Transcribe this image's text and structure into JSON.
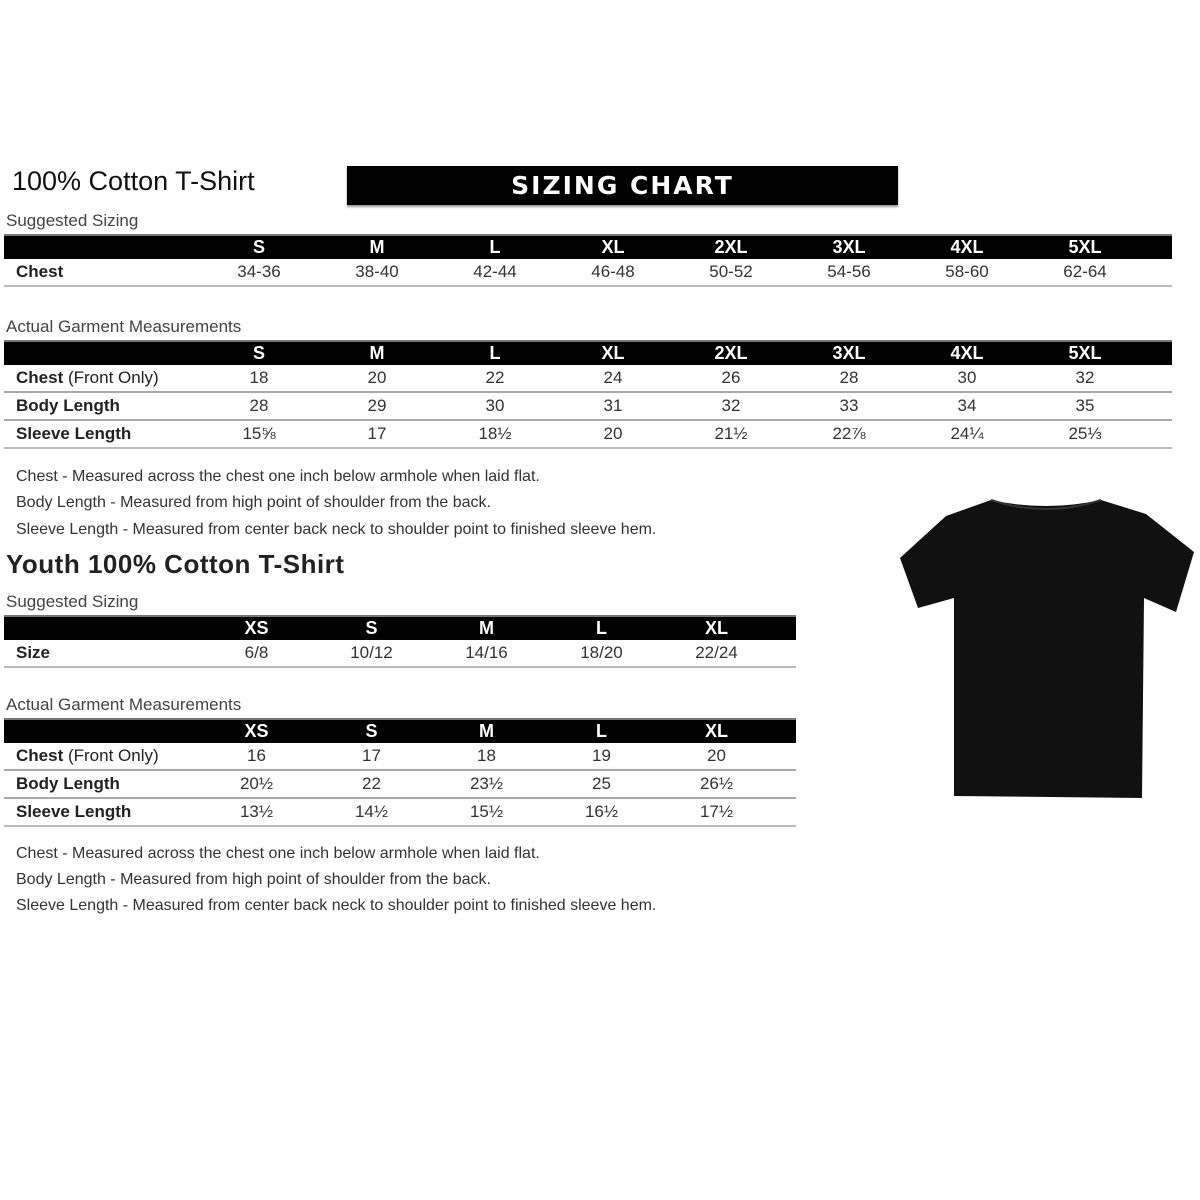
{
  "adult": {
    "title": "100% Cotton T-Shirt",
    "banner": "SIZING CHART",
    "suggested_label": "Suggested Sizing",
    "sizes": [
      "S",
      "M",
      "L",
      "XL",
      "2XL",
      "3XL",
      "4XL",
      "5XL"
    ],
    "suggested_rows": [
      {
        "label": "Chest",
        "values": [
          "34-36",
          "38-40",
          "42-44",
          "46-48",
          "50-52",
          "54-56",
          "58-60",
          "62-64"
        ]
      }
    ],
    "actual_label": "Actual Garment Measurements",
    "actual_rows": [
      {
        "label": "Chest",
        "suffix": " (Front Only)",
        "values": [
          "18",
          "20",
          "22",
          "24",
          "26",
          "28",
          "30",
          "32"
        ]
      },
      {
        "label": "Body Length",
        "suffix": "",
        "values": [
          "28",
          "29",
          "30",
          "31",
          "32",
          "33",
          "34",
          "35"
        ]
      },
      {
        "label": "Sleeve Length",
        "suffix": "",
        "values": [
          "15⅝",
          "17",
          "18½",
          "20",
          "21½",
          "22⅞",
          "24¼",
          "25⅓"
        ]
      }
    ],
    "notes": [
      "Chest - Measured across the chest one inch below armhole when laid flat.",
      "Body Length - Measured from high point of shoulder from the back.",
      "Sleeve Length - Measured from center back neck to shoulder point to finished sleeve hem."
    ]
  },
  "youth": {
    "title": "Youth 100% Cotton T-Shirt",
    "suggested_label": "Suggested Sizing",
    "sizes": [
      "XS",
      "S",
      "M",
      "L",
      "XL"
    ],
    "suggested_rows": [
      {
        "label": "Size",
        "values": [
          "6/8",
          "10/12",
          "14/16",
          "18/20",
          "22/24"
        ]
      }
    ],
    "actual_label": "Actual Garment Measurements",
    "actual_rows": [
      {
        "label": "Chest",
        "suffix": " (Front Only)",
        "values": [
          "16",
          "17",
          "18",
          "19",
          "20"
        ]
      },
      {
        "label": "Body Length",
        "suffix": "",
        "values": [
          "20½",
          "22",
          "23½",
          "25",
          "26½"
        ]
      },
      {
        "label": "Sleeve Length",
        "suffix": "",
        "values": [
          "13½",
          "14½",
          "15½",
          "16½",
          "17½"
        ]
      }
    ],
    "notes": [
      "Chest - Measured across the chest one inch below armhole when laid flat.",
      "Body Length - Measured from high point of shoulder from the back.",
      "Sleeve Length - Measured from center back neck to shoulder point to finished sleeve hem."
    ]
  },
  "shirt_color": "#111111"
}
